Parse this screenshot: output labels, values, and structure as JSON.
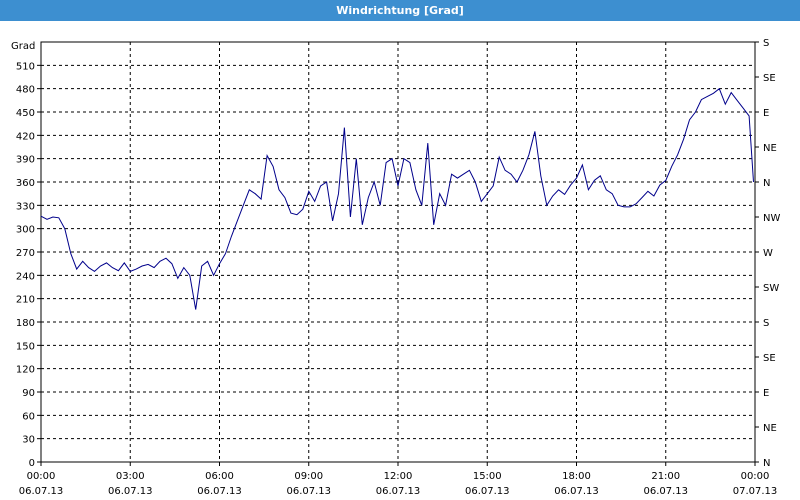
{
  "window": {
    "title": "Windrichtung [Grad]"
  },
  "colors": {
    "titlebar": "#3d8fd0",
    "line": "#00008b",
    "grid": "#000000"
  },
  "chart_data": {
    "type": "line",
    "title": "Windrichtung [Grad]",
    "ylabel": "Grad",
    "xlabel": "",
    "ylim": [
      0,
      540
    ],
    "yticks": [
      0,
      30,
      60,
      90,
      120,
      150,
      180,
      210,
      240,
      270,
      300,
      330,
      360,
      390,
      420,
      450,
      480,
      510
    ],
    "right_ticks": [
      {
        "value": 0,
        "label": "N"
      },
      {
        "value": 45,
        "label": "NE"
      },
      {
        "value": 90,
        "label": "E"
      },
      {
        "value": 135,
        "label": "SE"
      },
      {
        "value": 180,
        "label": "S"
      },
      {
        "value": 225,
        "label": "SW"
      },
      {
        "value": 270,
        "label": "W"
      },
      {
        "value": 315,
        "label": "NW"
      },
      {
        "value": 360,
        "label": "N"
      },
      {
        "value": 405,
        "label": "NE"
      },
      {
        "value": 450,
        "label": "E"
      },
      {
        "value": 495,
        "label": "SE"
      },
      {
        "value": 540,
        "label": "S"
      }
    ],
    "xlim": [
      0,
      24
    ],
    "xticks": [
      {
        "hour": 0,
        "time": "00:00",
        "date": "06.07.13"
      },
      {
        "hour": 3,
        "time": "03:00",
        "date": "06.07.13"
      },
      {
        "hour": 6,
        "time": "06:00",
        "date": "06.07.13"
      },
      {
        "hour": 9,
        "time": "09:00",
        "date": "06.07.13"
      },
      {
        "hour": 12,
        "time": "12:00",
        "date": "06.07.13"
      },
      {
        "hour": 15,
        "time": "15:00",
        "date": "06.07.13"
      },
      {
        "hour": 18,
        "time": "18:00",
        "date": "06.07.13"
      },
      {
        "hour": 21,
        "time": "21:00",
        "date": "06.07.13"
      },
      {
        "hour": 24,
        "time": "00:00",
        "date": "07.07.13"
      }
    ],
    "grid": true,
    "series": [
      {
        "x": [
          0,
          0.2,
          0.4,
          0.6,
          0.8,
          1.0,
          1.2,
          1.4,
          1.6,
          1.8,
          2.0,
          2.2,
          2.4,
          2.6,
          2.8,
          3.0,
          3.2,
          3.4,
          3.6,
          3.8,
          4.0,
          4.2,
          4.4,
          4.6,
          4.8,
          5.0,
          5.2,
          5.4,
          5.6,
          5.8,
          6.0,
          6.2,
          6.4,
          6.6,
          6.8,
          7.0,
          7.2,
          7.4,
          7.6,
          7.8,
          8.0,
          8.2,
          8.4,
          8.6,
          8.8,
          9.0,
          9.2,
          9.4,
          9.6,
          9.8,
          10.0,
          10.2,
          10.4,
          10.6,
          10.8,
          11.0,
          11.2,
          11.4,
          11.6,
          11.8,
          12.0,
          12.2,
          12.4,
          12.6,
          12.8,
          13.0,
          13.2,
          13.4,
          13.6,
          13.8,
          14.0,
          14.2,
          14.4,
          14.6,
          14.8,
          15.0,
          15.2,
          15.4,
          15.6,
          15.8,
          16.0,
          16.2,
          16.4,
          16.6,
          16.8,
          17.0,
          17.2,
          17.4,
          17.6,
          17.8,
          18.0,
          18.2,
          18.4,
          18.6,
          18.8,
          19.0,
          19.2,
          19.4,
          19.6,
          19.8,
          20.0,
          20.2,
          20.4,
          20.6,
          20.8,
          21.0,
          21.2,
          21.4,
          21.6,
          21.8,
          22.0,
          22.2,
          22.4,
          22.6,
          22.8,
          23.0,
          23.2,
          23.4,
          23.6,
          23.8,
          23.95
        ],
        "y": [
          316,
          312,
          315,
          314,
          300,
          268,
          248,
          258,
          250,
          245,
          252,
          256,
          250,
          246,
          256,
          245,
          248,
          252,
          254,
          250,
          258,
          262,
          255,
          236,
          250,
          240,
          196,
          252,
          258,
          240,
          255,
          268,
          290,
          310,
          330,
          350,
          345,
          338,
          394,
          380,
          350,
          340,
          320,
          318,
          325,
          348,
          335,
          355,
          360,
          310,
          345,
          430,
          315,
          390,
          305,
          340,
          360,
          330,
          385,
          390,
          355,
          390,
          385,
          350,
          330,
          410,
          305,
          345,
          330,
          370,
          365,
          370,
          375,
          360,
          335,
          345,
          355,
          392,
          375,
          370,
          360,
          375,
          395,
          425,
          368,
          330,
          342,
          350,
          344,
          356,
          365,
          382,
          350,
          362,
          368,
          350,
          345,
          330,
          328,
          328,
          332,
          340,
          348,
          342,
          356,
          362,
          380,
          395,
          415,
          440,
          450,
          466,
          470,
          474,
          480,
          460,
          475,
          465,
          455,
          445,
          360
        ]
      }
    ]
  }
}
